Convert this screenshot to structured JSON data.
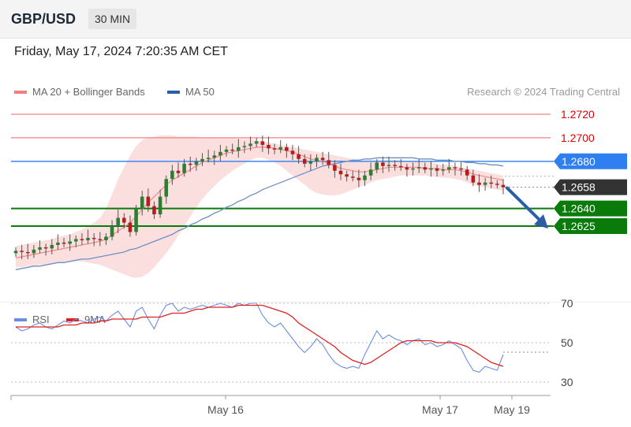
{
  "header": {
    "pair": "GBP/USD",
    "timeframe": "30 MIN"
  },
  "datetime": "Friday, May 17, 2024 7:20:35 AM CET",
  "legend": [
    {
      "label": "MA 20 + Bollinger Bands",
      "color": "#f08080"
    },
    {
      "label": "MA 50",
      "color": "#2a5fa8"
    }
  ],
  "credit": "Research © 2024 Trading Central",
  "rsi_legend": [
    {
      "label": "RSI",
      "color": "#6b8ee0"
    },
    {
      "label": "9MA",
      "color": "#e02020"
    }
  ],
  "colors": {
    "resistance": "#f08080",
    "pivot": "#2f7ff0",
    "support": "#0a7a0a",
    "last": "#333333",
    "candle_up": "#2e7d32",
    "candle_down": "#b71c1c"
  },
  "chart_data": [
    {
      "type": "candlestick",
      "title": "GBP/USD",
      "x_labels": [
        "May 16",
        "May 17",
        "May 19"
      ],
      "levels": [
        {
          "value": 1.272,
          "label": "1.2720",
          "kind": "resistance"
        },
        {
          "value": 1.27,
          "label": "1.2700",
          "kind": "resistance"
        },
        {
          "value": 1.268,
          "label": "1.2680",
          "kind": "pivot"
        },
        {
          "value": 1.2658,
          "label": "1.2658",
          "kind": "last"
        },
        {
          "value": 1.264,
          "label": "1.2640",
          "kind": "support"
        },
        {
          "value": 1.2625,
          "label": "1.2625",
          "kind": "support"
        }
      ],
      "close": [
        1.2604,
        1.2603,
        1.2602,
        1.2605,
        1.2607,
        1.2606,
        1.2609,
        1.2611,
        1.261,
        1.2612,
        1.2614,
        1.2613,
        1.2615,
        1.2614,
        1.2613,
        1.2616,
        1.2625,
        1.2632,
        1.2628,
        1.262,
        1.264,
        1.265,
        1.2642,
        1.2635,
        1.265,
        1.2665,
        1.2672,
        1.267,
        1.2678,
        1.2677,
        1.268,
        1.2682,
        1.2683,
        1.2685,
        1.2688,
        1.269,
        1.2689,
        1.2692,
        1.2693,
        1.2695,
        1.2697,
        1.2694,
        1.2691,
        1.269,
        1.2692,
        1.2689,
        1.2686,
        1.2682,
        1.2678,
        1.268,
        1.2683,
        1.2681,
        1.2677,
        1.2672,
        1.2669,
        1.2667,
        1.2666,
        1.2664,
        1.2668,
        1.2673,
        1.2679,
        1.2676,
        1.2677,
        1.2676,
        1.2675,
        1.2673,
        1.2674,
        1.2675,
        1.2673,
        1.2674,
        1.2672,
        1.2673,
        1.2675,
        1.2674,
        1.2673,
        1.2668,
        1.2662,
        1.266,
        1.2662,
        1.2661,
        1.266,
        1.2658
      ],
      "ma20": [
        1.2598,
        1.2599,
        1.26,
        1.2601,
        1.2602,
        1.2603,
        1.2604,
        1.2605,
        1.2606,
        1.2607,
        1.2608,
        1.2609,
        1.261,
        1.2611,
        1.2612,
        1.2614,
        1.2617,
        1.2621,
        1.2624,
        1.2628,
        1.2633,
        1.2639,
        1.2645,
        1.265,
        1.2655,
        1.266,
        1.2664,
        1.2667,
        1.267,
        1.2673,
        1.2676,
        1.2679,
        1.2681,
        1.2683,
        1.2685,
        1.2687,
        1.2688,
        1.2689,
        1.269,
        1.2691,
        1.2692,
        1.2692,
        1.2692,
        1.2691,
        1.269,
        1.2689,
        1.2688,
        1.2686,
        1.2684,
        1.2682,
        1.2681,
        1.268,
        1.2678,
        1.2676,
        1.2674,
        1.2673,
        1.2672,
        1.2671,
        1.2671,
        1.2672,
        1.2673,
        1.2674,
        1.2675,
        1.2675,
        1.2675,
        1.2675,
        1.2675,
        1.2675,
        1.2674,
        1.2674,
        1.2674,
        1.2673,
        1.2673,
        1.2673,
        1.2672,
        1.2671,
        1.2669,
        1.2668,
        1.2667,
        1.2666,
        1.2665,
        1.2664
      ],
      "bb_upper": [
        1.2608,
        1.2609,
        1.261,
        1.2611,
        1.2612,
        1.2613,
        1.2614,
        1.2616,
        1.2617,
        1.2618,
        1.262,
        1.2622,
        1.2625,
        1.2628,
        1.2632,
        1.264,
        1.2652,
        1.2665,
        1.2675,
        1.2685,
        1.2693,
        1.2698,
        1.27,
        1.2701,
        1.2702,
        1.2702,
        1.2702,
        1.2701,
        1.2701,
        1.2701,
        1.2701,
        1.27,
        1.27,
        1.27,
        1.27,
        1.27,
        1.27,
        1.2699,
        1.2699,
        1.2699,
        1.2698,
        1.2697,
        1.2696,
        1.2695,
        1.2694,
        1.2693,
        1.2692,
        1.2691,
        1.269,
        1.2689,
        1.2688,
        1.2687,
        1.2686,
        1.2685,
        1.2684,
        1.2683,
        1.2682,
        1.2681,
        1.2681,
        1.2681,
        1.2681,
        1.2681,
        1.2681,
        1.2681,
        1.2681,
        1.268,
        1.268,
        1.268,
        1.2679,
        1.2679,
        1.2678,
        1.2677,
        1.2677,
        1.2676,
        1.2675,
        1.2674,
        1.2673,
        1.2672,
        1.2671,
        1.267,
        1.2669,
        1.2668
      ],
      "bb_lower": [
        1.259,
        1.259,
        1.2591,
        1.2591,
        1.2592,
        1.2592,
        1.2593,
        1.2594,
        1.2594,
        1.2595,
        1.2595,
        1.2595,
        1.2594,
        1.2593,
        1.2592,
        1.259,
        1.2588,
        1.2586,
        1.2584,
        1.2582,
        1.2581,
        1.2582,
        1.2585,
        1.259,
        1.2596,
        1.2602,
        1.2609,
        1.2617,
        1.2625,
        1.2633,
        1.2641,
        1.2648,
        1.2654,
        1.2659,
        1.2664,
        1.2668,
        1.2672,
        1.2675,
        1.2678,
        1.2681,
        1.2683,
        1.2683,
        1.2681,
        1.2679,
        1.2676,
        1.2672,
        1.2668,
        1.2664,
        1.266,
        1.2656,
        1.2653,
        1.2652,
        1.2651,
        1.2651,
        1.2652,
        1.2654,
        1.2656,
        1.2658,
        1.266,
        1.2662,
        1.2664,
        1.2665,
        1.2666,
        1.2667,
        1.2668,
        1.2668,
        1.2668,
        1.2668,
        1.2668,
        1.2667,
        1.2667,
        1.2666,
        1.2666,
        1.2665,
        1.2664,
        1.2662,
        1.266,
        1.2659,
        1.2658,
        1.2657,
        1.2656,
        1.2655
      ],
      "ma50": [
        1.2588,
        1.2589,
        1.259,
        1.2591,
        1.2591,
        1.2592,
        1.2593,
        1.2594,
        1.2594,
        1.2595,
        1.2596,
        1.2597,
        1.2597,
        1.2598,
        1.2599,
        1.26,
        1.2601,
        1.2602,
        1.2603,
        1.2605,
        1.2606,
        1.2608,
        1.261,
        1.2612,
        1.2614,
        1.2616,
        1.2618,
        1.2621,
        1.2623,
        1.2626,
        1.2628,
        1.2631,
        1.2633,
        1.2636,
        1.2638,
        1.2641,
        1.2643,
        1.2646,
        1.2648,
        1.2651,
        1.2653,
        1.2656,
        1.2658,
        1.266,
        1.2662,
        1.2664,
        1.2666,
        1.2668,
        1.267,
        1.2672,
        1.2674,
        1.2676,
        1.2677,
        1.2678,
        1.2679,
        1.268,
        1.2681,
        1.2681,
        1.2682,
        1.2682,
        1.2683,
        1.2683,
        1.2683,
        1.2683,
        1.2683,
        1.2683,
        1.2683,
        1.2682,
        1.2682,
        1.2682,
        1.2681,
        1.2681,
        1.2681,
        1.268,
        1.268,
        1.2679,
        1.2679,
        1.2678,
        1.2678,
        1.2677,
        1.2677,
        1.2676
      ],
      "forecast": {
        "from": 1.2658,
        "to": 1.2625,
        "direction": "down"
      }
    },
    {
      "type": "line",
      "title": "RSI",
      "ylim": [
        20,
        80
      ],
      "y_ticks": [
        70,
        50,
        30
      ],
      "series": [
        {
          "name": "RSI",
          "values": [
            58,
            56,
            57,
            59,
            60,
            58,
            57,
            59,
            61,
            60,
            62,
            61,
            60,
            62,
            63,
            61,
            64,
            66,
            62,
            58,
            66,
            68,
            62,
            57,
            64,
            69,
            70,
            66,
            68,
            67,
            68,
            69,
            68,
            69,
            70,
            69,
            68,
            70,
            69,
            70,
            70,
            64,
            60,
            58,
            60,
            56,
            52,
            48,
            45,
            48,
            52,
            49,
            44,
            40,
            38,
            37,
            38,
            37,
            44,
            50,
            56,
            52,
            54,
            52,
            51,
            49,
            51,
            52,
            49,
            50,
            48,
            49,
            51,
            49,
            47,
            41,
            36,
            35,
            38,
            37,
            36,
            44
          ]
        },
        {
          "name": "9MA",
          "values": [
            58,
            58,
            58,
            58,
            58,
            58,
            58,
            58,
            59,
            59,
            59,
            60,
            60,
            60,
            61,
            61,
            62,
            62,
            62,
            62,
            62,
            63,
            63,
            63,
            63,
            64,
            65,
            65,
            65,
            66,
            67,
            67,
            68,
            68,
            68,
            68,
            68,
            69,
            69,
            69,
            69,
            69,
            68,
            67,
            66,
            65,
            63,
            60,
            58,
            56,
            54,
            52,
            50,
            48,
            45,
            43,
            41,
            40,
            39,
            40,
            42,
            44,
            46,
            48,
            50,
            51,
            51,
            51,
            51,
            51,
            50,
            50,
            50,
            50,
            49,
            48,
            46,
            44,
            42,
            40,
            39,
            38
          ]
        }
      ]
    }
  ]
}
